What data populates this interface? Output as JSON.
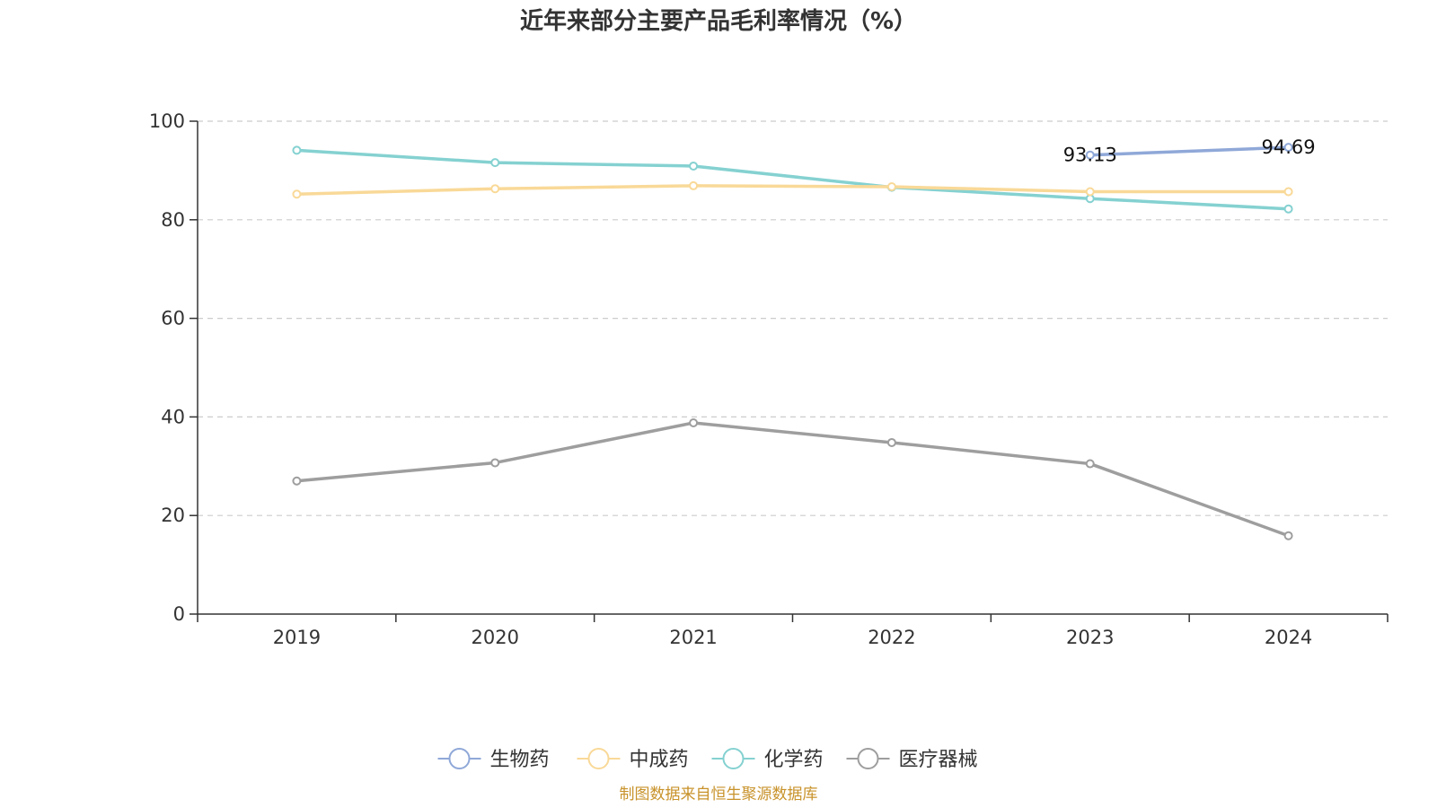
{
  "chart_data": {
    "type": "line",
    "title": "近年来部分主要产品毛利率情况（%）",
    "categories": [
      "2019",
      "2020",
      "2021",
      "2022",
      "2023",
      "2024"
    ],
    "ylim": [
      0,
      100
    ],
    "yticks": [
      0,
      20,
      40,
      60,
      80,
      100
    ],
    "grid": true,
    "legend_position": "bottom",
    "series": [
      {
        "name": "生物药",
        "color": "#8fa8d8",
        "values": [
          null,
          null,
          null,
          null,
          93.13,
          94.69
        ],
        "labels": [
          "",
          "",
          "",
          "",
          "93.13",
          "94.69"
        ]
      },
      {
        "name": "中成药",
        "color": "#f9d998",
        "values": [
          85.2,
          86.3,
          86.9,
          86.7,
          85.7,
          85.7
        ]
      },
      {
        "name": "化学药",
        "color": "#85d1d1",
        "values": [
          94.1,
          91.6,
          90.9,
          86.6,
          84.3,
          82.2
        ]
      },
      {
        "name": "医疗器械",
        "color": "#9e9e9e",
        "values": [
          27.0,
          30.7,
          38.8,
          34.8,
          30.5,
          15.9
        ]
      }
    ]
  },
  "source": "制图数据来自恒生聚源数据库"
}
